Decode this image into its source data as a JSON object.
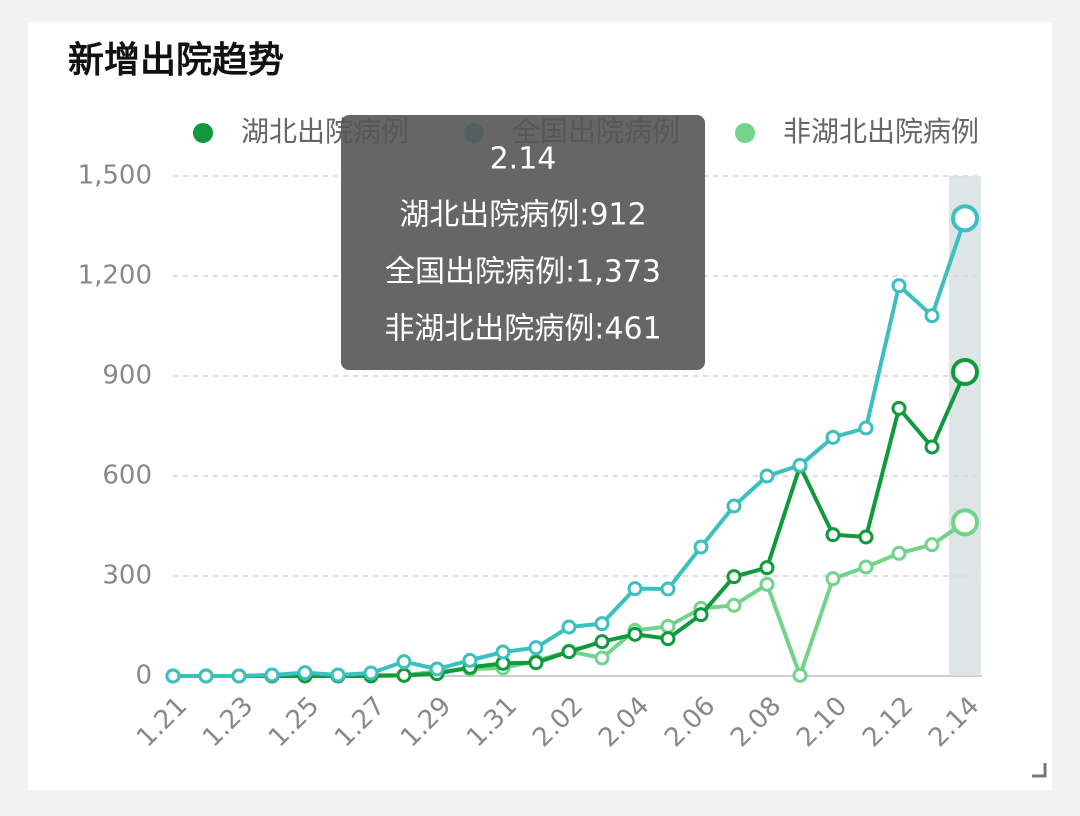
{
  "chart_data": {
    "type": "line",
    "title": "新增出院趋势",
    "categories": [
      "1.21",
      null,
      "1.23",
      null,
      "1.25",
      null,
      "1.27",
      null,
      "1.29",
      null,
      "1.31",
      null,
      "2.02",
      null,
      "2.04",
      null,
      "2.06",
      null,
      "2.08",
      null,
      "2.10",
      null,
      "2.12",
      null,
      "2.14"
    ],
    "series": [
      {
        "name": "湖北出院病例",
        "color": "#10993d",
        "values": [
          0,
          0,
          0,
          0,
          0,
          0,
          0,
          2,
          7,
          26,
          38,
          40,
          73,
          103,
          125,
          112,
          184,
          298,
          325,
          630,
          424,
          417,
          803,
          687,
          912
        ]
      },
      {
        "name": "全国出院病例",
        "color": "#3cbfbf",
        "values": [
          0,
          0,
          0,
          3,
          10,
          3,
          9,
          43,
          21,
          47,
          72,
          85,
          147,
          157,
          262,
          261,
          387,
          510,
          600,
          632,
          716,
          744,
          1171,
          1081,
          1373
        ]
      },
      {
        "name": "非湖北出院病例",
        "color": "#72d48a",
        "values": [
          0,
          0,
          0,
          3,
          8,
          3,
          3,
          2,
          14,
          21,
          24,
          45,
          74,
          54,
          137,
          149,
          203,
          212,
          275,
          2,
          292,
          327,
          368,
          394,
          461
        ]
      }
    ],
    "ylim": [
      0,
      1500
    ],
    "yticks": [
      0,
      300,
      600,
      900,
      {
        "value": 1200,
        "label": "1,200"
      },
      {
        "value": 1500,
        "label": "1,500"
      }
    ],
    "grid": true,
    "highlight_index": 24,
    "tooltip": {
      "title": "2.14",
      "lines": [
        "湖北出院病例:912",
        "全国出院病例:1,373",
        "非湖北出院病例:461"
      ]
    }
  }
}
